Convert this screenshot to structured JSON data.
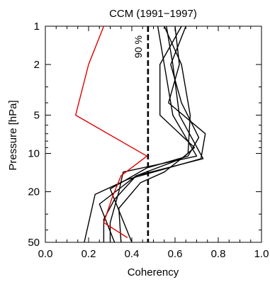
{
  "chart_data": {
    "type": "line",
    "title": "CCM (1991−1997)",
    "xlabel": "Coherency",
    "ylabel": "Pressure [hPa]",
    "xlim": [
      0.0,
      1.0
    ],
    "ylim": [
      1,
      50
    ],
    "y_scale": "log",
    "y_inverted": true,
    "x_ticks": [
      "0.0",
      "0.2",
      "0.4",
      "0.6",
      "0.8",
      "1.0"
    ],
    "y_ticks": [
      "1",
      "2",
      "5",
      "10",
      "20",
      "50"
    ],
    "threshold": {
      "x": 0.475,
      "label": "90 %",
      "style": "dashed"
    },
    "colors": {
      "black_series": "#000000",
      "red_series": "#e00000"
    },
    "series": [
      {
        "color": "red",
        "points": [
          [
            0.27,
            1
          ],
          [
            0.2,
            2
          ],
          [
            0.14,
            5
          ],
          [
            0.47,
            10.5
          ],
          [
            0.35,
            15
          ],
          [
            0.31,
            22
          ],
          [
            0.27,
            35
          ],
          [
            0.38,
            46
          ]
        ]
      },
      {
        "color": "black",
        "points": [
          [
            0.52,
            1
          ],
          [
            0.55,
            2
          ],
          [
            0.59,
            5
          ],
          [
            0.7,
            10.5
          ],
          [
            0.36,
            14
          ],
          [
            0.34,
            20
          ],
          [
            0.3,
            35
          ],
          [
            0.3,
            50
          ]
        ]
      },
      {
        "color": "black",
        "points": [
          [
            0.56,
            1
          ],
          [
            0.59,
            2
          ],
          [
            0.62,
            5
          ],
          [
            0.73,
            11
          ],
          [
            0.42,
            15
          ],
          [
            0.32,
            23
          ],
          [
            0.27,
            33
          ],
          [
            0.27,
            50
          ]
        ]
      },
      {
        "color": "black",
        "points": [
          [
            0.6,
            1
          ],
          [
            0.62,
            2
          ],
          [
            0.57,
            4
          ],
          [
            0.74,
            7
          ],
          [
            0.72,
            11
          ],
          [
            0.38,
            16
          ],
          [
            0.23,
            21
          ],
          [
            0.18,
            50
          ]
        ]
      },
      {
        "color": "black",
        "points": [
          [
            0.65,
            1
          ],
          [
            0.58,
            2
          ],
          [
            0.63,
            4
          ],
          [
            0.71,
            7.5
          ],
          [
            0.66,
            10.5
          ],
          [
            0.47,
            13
          ],
          [
            0.3,
            19
          ],
          [
            0.4,
            50
          ]
        ]
      },
      {
        "color": "black",
        "points": [
          [
            0.63,
            1
          ],
          [
            0.53,
            2
          ],
          [
            0.53,
            5
          ],
          [
            0.69,
            9
          ],
          [
            0.63,
            11
          ],
          [
            0.42,
            15
          ],
          [
            0.25,
            25
          ],
          [
            0.32,
            50
          ]
        ]
      },
      {
        "color": "black",
        "points": [
          [
            0.55,
            1
          ],
          [
            0.63,
            2
          ],
          [
            0.67,
            5
          ],
          [
            0.66,
            10
          ],
          [
            0.55,
            14
          ],
          [
            0.44,
            17
          ],
          [
            0.34,
            27
          ],
          [
            0.35,
            50
          ]
        ]
      }
    ]
  }
}
